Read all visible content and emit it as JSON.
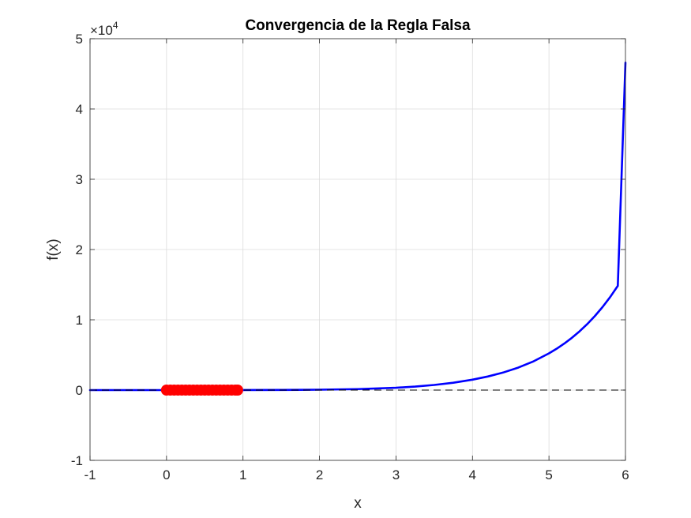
{
  "chart_data": {
    "type": "line",
    "title": "Convergencia de la Regla Falsa",
    "xlabel": "x",
    "ylabel": "f(x)",
    "xlim": [
      -1,
      6
    ],
    "ylim": [
      -10000,
      50000
    ],
    "x_ticks": [
      -1,
      0,
      1,
      2,
      3,
      4,
      5,
      6
    ],
    "x_tick_labels": [
      "-1",
      "0",
      "1",
      "2",
      "3",
      "4",
      "5",
      "6"
    ],
    "y_ticks": [
      -10000,
      0,
      10000,
      20000,
      30000,
      40000,
      50000
    ],
    "y_tick_labels": [
      "-1",
      "0",
      "1",
      "2",
      "3",
      "4",
      "5"
    ],
    "y_exponent_base": "×10",
    "y_exponent_power": "4",
    "grid": true,
    "box": true,
    "series": [
      {
        "kind": "curve",
        "color": "#0000ff",
        "x": [
          -1,
          -0.5,
          0,
          0.5,
          1,
          1.5,
          2,
          2.5,
          3,
          3.25,
          3.5,
          3.75,
          4,
          4.2,
          4.4,
          4.6,
          4.8,
          5,
          5.1,
          5.2,
          5.3,
          5.4,
          5.5,
          5.6,
          5.7,
          5.8,
          5.9,
          6
        ],
        "y": [
          -1,
          -1,
          -1,
          1,
          6,
          21,
          57,
          142,
          331,
          498,
          730,
          1048,
          1484,
          1930,
          2494,
          3205,
          4099,
          5222,
          5881,
          6618,
          7441,
          8360,
          9386,
          10532,
          11811,
          13237,
          14829,
          46600
        ]
      },
      {
        "kind": "reference-line",
        "color": "#000000",
        "style": "dashed",
        "y_value": 0,
        "x_range": [
          -1,
          6
        ]
      },
      {
        "kind": "iterations",
        "color": "#ff0000",
        "marker": "o",
        "x": [
          0,
          0.05,
          0.1,
          0.15,
          0.2,
          0.25,
          0.3,
          0.35,
          0.4,
          0.45,
          0.5,
          0.55,
          0.6,
          0.65,
          0.7,
          0.75,
          0.8,
          0.85,
          0.9,
          0.93
        ],
        "y": [
          0,
          0,
          0,
          0,
          0,
          0,
          0,
          0,
          0,
          0,
          0,
          0,
          0,
          0,
          0,
          0,
          0,
          0,
          0,
          0
        ]
      }
    ]
  }
}
